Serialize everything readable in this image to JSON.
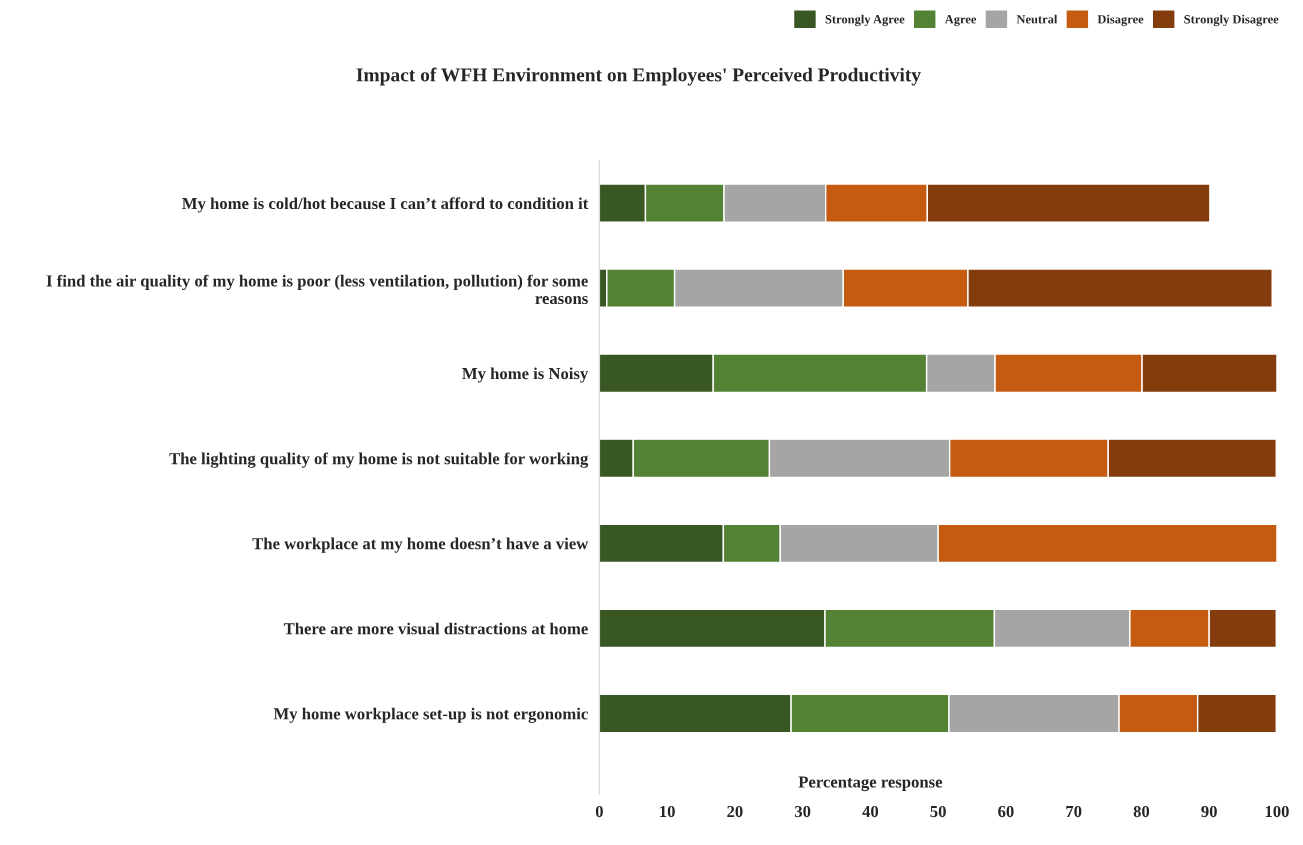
{
  "chart_data": {
    "type": "bar",
    "orientation": "horizontal",
    "stacked": true,
    "title": "Impact of WFH Environment on Employees' Perceived Productivity",
    "xlabel": "Percentage response",
    "categories": [
      "My home is cold/hot because I can’t afford to condition it",
      "I find the air quality of my home is poor (less ventilation, pollution) for some reasons",
      "My home is Noisy",
      "The lighting quality of my home is not suitable for working",
      "The workplace at my home doesn’t have a view",
      "There are more visual distractions at home",
      "My home workplace set-up is not ergonomic"
    ],
    "series": [
      {
        "name": "Strongly Agree",
        "color": "#385723",
        "values": [
          6.8,
          1.1,
          16.8,
          5.0,
          18.3,
          33.3,
          28.3
        ]
      },
      {
        "name": "Agree",
        "color": "#548235",
        "values": [
          11.6,
          10.0,
          31.5,
          20.1,
          8.4,
          25.0,
          23.3
        ]
      },
      {
        "name": "Neutral",
        "color": "#a5a5a5",
        "values": [
          15.0,
          24.9,
          10.1,
          26.6,
          23.3,
          20.0,
          25.1
        ]
      },
      {
        "name": "Disagree",
        "color": "#c55a11",
        "values": [
          15.0,
          18.4,
          21.7,
          23.4,
          50.0,
          11.7,
          11.6
        ]
      },
      {
        "name": "Strongly Disagree",
        "color": "#843c0c",
        "values": [
          41.7,
          44.9,
          19.9,
          24.8,
          null,
          9.9,
          11.6
        ]
      }
    ],
    "xlim": [
      0,
      100
    ],
    "xticks": [
      0,
      10,
      20,
      30,
      40,
      50,
      60,
      70,
      80,
      90,
      100
    ],
    "grid": false,
    "legend": "top right"
  }
}
